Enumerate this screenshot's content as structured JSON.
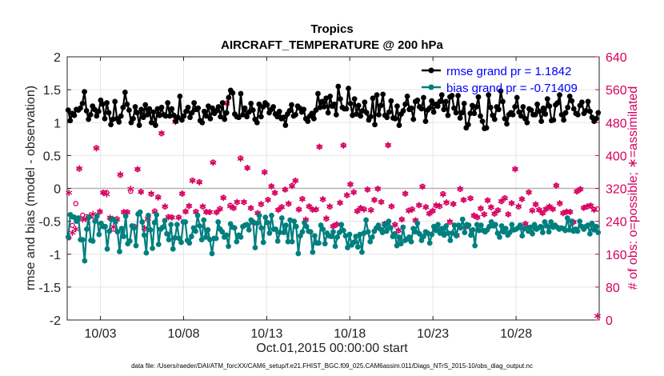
{
  "chart_data": {
    "type": "line",
    "title": "Tropics",
    "subtitle": "AIRCRAFT_TEMPERATURE @ 200 hPa",
    "xlabel": "Oct.01,2015 00:00:00 start",
    "ylabel": "rmse and bias (model - observation)",
    "y2label": "# of obs: o=possible; ∗=assimilated",
    "footer": "data file: /Users/raeder/DAI/ATM_forcXX/CAM6_setup/f.e21.FHIST_BGC.f09_025.CAM6assim.011/Diags_NTrS_2015-10/obs_diag_output.nc",
    "xlim": [
      1,
      33
    ],
    "ylim": [
      -2,
      2
    ],
    "y2lim": [
      0,
      640
    ],
    "x_ticks": [
      3,
      8,
      13,
      18,
      23,
      28
    ],
    "x_tick_labels": [
      "10/03",
      "10/08",
      "10/13",
      "10/18",
      "10/23",
      "10/28"
    ],
    "y_ticks": [
      "-2",
      "-1.5",
      "-1",
      "-0.5",
      "0",
      "0.5",
      "1",
      "1.5",
      "2"
    ],
    "y2_ticks": [
      "0",
      "80",
      "160",
      "240",
      "320",
      "400",
      "480",
      "560",
      "640"
    ],
    "grid": true,
    "legend_position": "top-right",
    "series": [
      {
        "name": "rmse",
        "legend": "rmse grand pr = 1.1842",
        "color": "#000000",
        "axis": "left",
        "values": [
          1.19,
          1.03,
          1.14,
          1.11,
          1.2,
          1.19,
          1.22,
          1.29,
          1.47,
          1.18,
          1.05,
          1.12,
          1.25,
          1.2,
          1.1,
          1.17,
          1.34,
          1.28,
          1.06,
          1.3,
          1.15,
          0.97,
          1.05,
          1.32,
          1.06,
          1.01,
          1.1,
          1.23,
          1.46,
          1.28,
          1.19,
          1.0,
          1.06,
          1.24,
          1.15,
          0.96,
          1.2,
          1.08,
          1.27,
          1.12,
          1.21,
          1.0,
          1.16,
          0.96,
          1.21,
          1.11,
          1.23,
          1.12,
          1.1,
          1.3,
          1.1,
          1.21,
          1.11,
          1.02,
          1.08,
          1.4,
          1.04,
          1.1,
          1.17,
          1.23,
          1.08,
          1.15,
          1.3,
          1.2,
          1.22,
          1.03,
          1.0,
          1.17,
          1.1,
          1.25,
          1.06,
          1.22,
          1.14,
          1.18,
          1.24,
          1.09,
          1.3,
          1.05,
          1.15,
          1.38,
          1.49,
          1.45,
          1.13,
          1.09,
          1.08,
          1.44,
          1.12,
          1.22,
          1.09,
          1.16,
          1.29,
          1.19,
          1.05,
          1.0,
          1.28,
          1.09,
          1.24,
          1.3,
          1.27,
          1.15,
          1.2,
          1.24,
          1.13,
          1.09,
          1.17,
          1.06,
          1.08,
          0.96,
          1.13,
          1.18,
          1.27,
          1.1,
          1.12,
          1.25,
          1.22,
          1.16,
          1.2,
          1.06,
          1.02,
          1.1,
          1.14,
          1.06,
          1.19,
          1.44,
          1.23,
          1.32,
          1.24,
          1.37,
          1.15,
          1.4,
          1.25,
          1.28,
          1.12,
          1.55,
          1.36,
          1.23,
          1.21,
          1.21,
          1.52,
          1.29,
          1.11,
          1.36,
          1.13,
          1.26,
          1.1,
          1.18,
          1.31,
          1.15,
          1.04,
          1.09,
          1.37,
          0.97,
          1.42,
          1.12,
          1.26,
          1.43,
          1.11,
          1.08,
          1.16,
          1.33,
          1.07,
          1.06,
          1.25,
          0.96,
          1.13,
          1.18,
          1.28,
          1.4,
          1.2,
          1.22,
          1.05,
          1.32,
          1.34,
          1.24,
          1.21,
          1.38,
          1.02,
          1.19,
          1.22,
          1.33,
          1.16,
          1.28,
          1.25,
          1.32,
          1.42,
          1.2,
          1.32,
          1.11,
          1.39,
          1.41,
          1.22,
          1.15,
          1.41,
          1.07,
          1.15,
          1.29,
          0.92,
          0.97,
          1.14,
          1.26,
          1.14,
          1.24,
          1.39,
          1.1,
          1.02,
          0.91,
          0.92,
          1.42,
          1.23,
          1.11,
          1.05,
          1.24,
          1.2,
          1.48,
          1.32,
          1.06,
          0.98,
          1.12,
          1.15,
          1.12,
          1.24,
          1.38,
          1.16,
          1.1,
          1.24,
          1.06,
          1.0,
          1.21,
          1.19,
          1.12,
          1.12,
          1.28,
          1.17,
          1.02,
          1.22,
          1.13,
          1.36,
          1.25,
          1.03,
          1.04,
          1.27,
          1.3,
          1.42,
          1.12,
          1.04,
          1.15,
          1.23,
          1.4,
          1.33,
          1.21,
          1.14,
          1.12,
          1.26,
          1.31,
          1.14,
          1.18,
          1.32,
          1.17,
          1.08,
          1.02,
          1.06,
          1.15
        ]
      },
      {
        "name": "bias",
        "legend": "bias grand pr = -0.71409",
        "color": "#007f7f",
        "axis": "left",
        "values": [
          -0.74,
          -0.4,
          -0.43,
          -0.44,
          -0.5,
          -0.45,
          -0.78,
          -0.78,
          -1.1,
          -0.62,
          -0.44,
          -0.79,
          -0.8,
          -0.5,
          -0.42,
          -0.7,
          -0.53,
          -0.58,
          -0.58,
          -0.92,
          -0.65,
          -0.47,
          -0.47,
          -0.51,
          -0.66,
          -0.96,
          -0.61,
          -0.73,
          -0.42,
          -0.84,
          -0.8,
          -0.57,
          -0.6,
          -0.87,
          -0.39,
          -0.36,
          -0.51,
          -0.71,
          -0.98,
          -0.41,
          -0.63,
          -0.91,
          -0.52,
          -0.4,
          -0.85,
          -0.62,
          -0.59,
          -0.49,
          -0.69,
          -0.78,
          -0.55,
          -0.92,
          -0.75,
          -0.55,
          -0.76,
          -0.82,
          -0.51,
          -0.51,
          -0.79,
          -0.83,
          -0.73,
          -0.6,
          -0.65,
          -0.41,
          -0.57,
          -0.78,
          -0.48,
          -0.74,
          -0.63,
          -0.78,
          -0.99,
          -0.76,
          -0.76,
          -0.51,
          -0.62,
          -0.66,
          -0.74,
          -0.71,
          -0.88,
          -0.54,
          -0.59,
          -0.6,
          -0.81,
          -0.71,
          -0.74,
          -0.58,
          -0.56,
          -0.55,
          -0.63,
          -0.48,
          -0.51,
          -0.9,
          -0.53,
          -0.41,
          -0.6,
          -0.82,
          -0.44,
          -0.52,
          -0.68,
          -0.41,
          -0.62,
          -0.62,
          -0.8,
          -0.67,
          -0.45,
          -0.67,
          -0.56,
          -0.81,
          -0.48,
          -0.81,
          -0.5,
          -0.58,
          -0.99,
          -0.72,
          -0.66,
          -0.52,
          -0.58,
          -0.65,
          -0.66,
          -0.97,
          -0.72,
          -0.83,
          -0.83,
          -0.56,
          -0.62,
          -0.84,
          -0.68,
          -0.72,
          -0.73,
          -0.66,
          -0.88,
          -0.74,
          -0.67,
          -0.55,
          -0.64,
          -0.72,
          -0.9,
          -0.7,
          -0.86,
          -0.82,
          -0.73,
          -0.89,
          -0.7,
          -0.97,
          -0.68,
          -0.48,
          -0.66,
          -0.81,
          -0.74,
          -0.65,
          -0.6,
          -0.56,
          -0.62,
          -0.67,
          -0.55,
          -0.65,
          -0.5,
          -0.6,
          -0.73,
          -0.69,
          -0.87,
          -0.74,
          -0.84,
          -0.59,
          -0.79,
          -0.77,
          -0.74,
          -0.81,
          -0.61,
          -0.66,
          -0.53,
          -0.69,
          -0.79,
          -0.73,
          -0.66,
          -0.68,
          -0.83,
          -0.7,
          -0.58,
          -0.64,
          -0.55,
          -0.68,
          -0.61,
          -0.71,
          -0.57,
          -0.68,
          -0.79,
          -0.68,
          -0.56,
          -0.72,
          -0.56,
          -0.6,
          -0.47,
          -0.67,
          -0.55,
          -0.56,
          -0.71,
          -0.63,
          -0.87,
          -0.55,
          -0.64,
          -0.56,
          -0.64,
          -0.66,
          -0.63,
          -0.58,
          -0.51,
          -0.57,
          -0.55,
          -0.68,
          -0.74,
          -0.57,
          -0.66,
          -0.61,
          -0.71,
          -0.67,
          -0.55,
          -0.63,
          -0.62,
          -0.6,
          -0.56,
          -0.72,
          -0.61,
          -0.6,
          -0.65,
          -0.59,
          -0.69,
          -0.55,
          -0.62,
          -0.6,
          -0.58,
          -0.67,
          -0.51,
          -0.57,
          -0.66,
          -0.51,
          -0.59,
          -0.56,
          -0.59,
          -0.62,
          -0.6,
          -0.61,
          -0.64,
          -0.45,
          -0.63,
          -0.5,
          -0.65,
          -0.62,
          -0.65,
          -0.5,
          -0.58,
          -0.62,
          -0.58,
          -0.56,
          -0.69,
          -0.53,
          -0.63,
          -0.58,
          -0.67
        ]
      }
    ],
    "count_series": [
      {
        "name": "possible",
        "marker": "o",
        "color": "#d6005f",
        "axis": "right",
        "values": [
          200,
          230,
          283,
          367,
          255,
          251,
          251,
          252,
          419,
          263,
          310,
          310,
          247,
          221,
          246,
          352,
          262,
          263,
          313,
          228,
          366,
          312,
          221,
          244,
          306,
          265,
          299,
          453,
          275,
          251,
          250,
          484,
          250,
          307,
          264,
          277,
          340,
          264,
          336,
          275,
          263,
          262,
          384,
          262,
          271,
          298,
          528,
          279,
          272,
          286,
          394,
          286,
          370,
          272,
          236,
          260,
          281,
          360,
          293,
          325,
          309,
          268,
          275,
          317,
          282,
          327,
          339,
          269,
          295,
          243,
          276,
          268,
          268,
          421,
          293,
          246,
          275,
          228,
          232,
          285,
          425,
          303,
          330,
          311,
          265,
          272,
          270,
          317,
          268,
          292,
          319,
          287,
          234,
          425,
          276,
          232,
          217,
          245,
          307,
          267,
          270,
          242,
          279,
          325,
          275,
          259,
          265,
          278,
          276,
          307,
          285,
          238,
          282,
          206,
          318,
          292,
          228,
          296,
          254,
          249,
          271,
          257,
          291,
          274,
          258,
          267,
          288,
          297,
          257,
          284,
          367,
          275,
          294,
          234,
          311,
          267,
          281,
          268,
          260,
          270,
          275,
          270,
          327,
          283,
          260,
          263,
          263,
          238,
          313,
          318,
          273,
          275,
          278,
          269,
          270
        ]
      },
      {
        "name": "assimilated",
        "marker": "*",
        "color": "#d6005f",
        "axis": "right",
        "values": [
          305,
          208,
          217,
          365,
          240,
          241,
          249,
          254,
          413,
          260,
          305,
          302,
          245,
          223,
          240,
          350,
          259,
          258,
          315,
          222,
          363,
          307,
          220,
          242,
          303,
          259,
          294,
          450,
          272,
          246,
          245,
          478,
          245,
          303,
          260,
          273,
          335,
          259,
          331,
          272,
          259,
          259,
          378,
          258,
          266,
          293,
          522,
          272,
          268,
          283,
          388,
          283,
          366,
          268,
          232,
          256,
          278,
          355,
          288,
          321,
          305,
          264,
          270,
          313,
          279,
          322,
          335,
          265,
          290,
          240,
          272,
          265,
          266,
          417,
          290,
          243,
          272,
          224,
          229,
          281,
          420,
          300,
          326,
          306,
          261,
          268,
          265,
          313,
          263,
          288,
          315,
          283,
          230,
          421,
          272,
          228,
          214,
          240,
          303,
          262,
          265,
          238,
          275,
          320,
          270,
          255,
          262,
          275,
          273,
          302,
          282,
          235,
          278,
          202,
          315,
          288,
          225,
          292,
          250,
          246,
          267,
          253,
          287,
          270,
          255,
          263,
          285,
          292,
          253,
          280,
          363,
          272,
          290,
          230,
          306,
          262,
          277,
          264,
          256,
          266,
          272,
          266,
          323,
          280,
          256,
          260,
          259,
          234,
          308,
          314,
          268,
          272,
          274,
          264,
          6
        ]
      }
    ]
  }
}
